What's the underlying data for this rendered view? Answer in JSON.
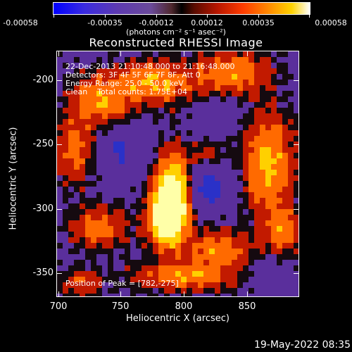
{
  "colorbar": {
    "tick_labels": [
      "-0.00058",
      "-0.00035",
      "-0.00012",
      "0.00012",
      "0.00035",
      "0.00058"
    ],
    "units_label": "(photons cm⁻² s⁻¹ asec⁻²)"
  },
  "title": "Reconstructed RHESSI Image",
  "annotations": {
    "time_range": "22-Dec-2013 21:10:48.000 to 21:16:48.000",
    "detectors": "Detectors: 3F 4F 5F 6F 7F 8F, Att 0",
    "energy_range": "Energy Range: 25.0 - 50.0 keV",
    "clean_counts": "Clean    Total counts: 1.75E+04",
    "peak_position": "Position of Peak = [782,-275]"
  },
  "axes": {
    "xlabel": "Heliocentric X (arcsec)",
    "ylabel": "Heliocentric Y (arcsec)",
    "x_ticks": [
      "700",
      "750",
      "800",
      "850"
    ],
    "y_ticks": [
      "-200",
      "-250",
      "-300",
      "-350"
    ]
  },
  "timestamp": "19-May-2022 08:35",
  "image_colors": {
    "background": "#5a2f9c",
    "deep": "#2a31c8",
    "dark": "#150a10",
    "red": "#c21a00",
    "orange": "#ff6a00",
    "yellow": "#ffd000",
    "white": "#ffffa8"
  }
}
